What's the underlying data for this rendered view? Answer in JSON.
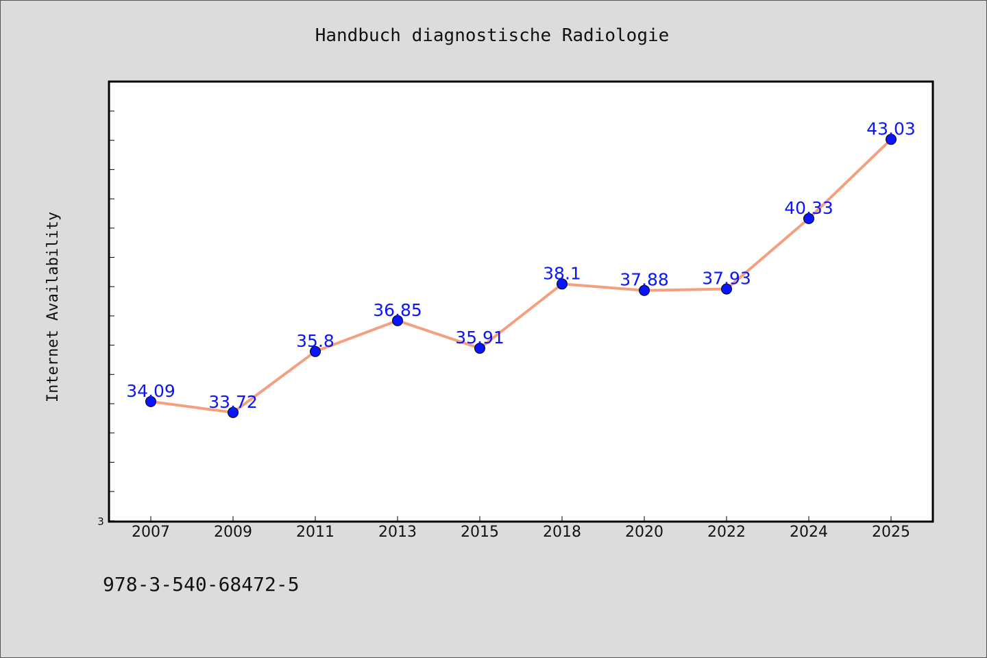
{
  "chart_data": {
    "type": "line",
    "title": "Handbuch diagnostische Radiologie",
    "xlabel": "",
    "ylabel": "Internet Availability",
    "categories": [
      "2007",
      "2009",
      "2011",
      "2013",
      "2015",
      "2018",
      "2020",
      "2022",
      "2024",
      "2025"
    ],
    "series": [
      {
        "values": [
          34.09,
          33.72,
          35.8,
          36.85,
          35.91,
          38.1,
          37.88,
          37.93,
          40.33,
          43.03
        ],
        "data_labels": [
          "34.09",
          "33.72",
          "35.8",
          "36.85",
          "35.91",
          "38.1",
          "37.88",
          "37.93",
          "40.33",
          "43.03"
        ]
      }
    ],
    "y_tick_labels": [
      "3"
    ],
    "ylim": [
      30.0,
      45.0
    ],
    "grid": false,
    "line_color": "#f4a080",
    "marker_color": "#0a14ff",
    "label_color": "#0a14ff",
    "plot_background": "#ffffff",
    "page_background": "#dcdcdc"
  },
  "footer": {
    "isbn": "978-3-540-68472-5"
  }
}
